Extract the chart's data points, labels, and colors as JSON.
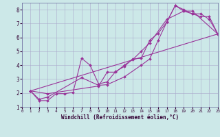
{
  "xlabel": "Windchill (Refroidissement éolien,°C)",
  "bg_color": "#cce8e8",
  "line_color": "#993399",
  "grid_color": "#aaaacc",
  "xlim": [
    0,
    23
  ],
  "ylim": [
    1,
    8.5
  ],
  "xticks": [
    0,
    1,
    2,
    3,
    4,
    5,
    6,
    7,
    8,
    9,
    10,
    11,
    12,
    13,
    14,
    15,
    16,
    17,
    18,
    19,
    20,
    21,
    22,
    23
  ],
  "yticks": [
    1,
    2,
    3,
    4,
    5,
    6,
    7,
    8
  ],
  "series": [
    {
      "x": [
        1,
        2,
        3,
        4,
        5,
        6,
        7,
        8,
        9,
        10,
        11,
        12,
        13,
        14,
        15,
        16,
        17,
        18,
        19,
        20,
        21,
        22,
        23
      ],
      "y": [
        2.15,
        1.45,
        1.45,
        1.95,
        1.95,
        2.05,
        4.5,
        4.0,
        2.65,
        2.8,
        3.55,
        3.9,
        4.45,
        4.5,
        5.8,
        6.3,
        7.1,
        8.3,
        7.9,
        7.7,
        7.7,
        7.3,
        6.25
      ]
    },
    {
      "x": [
        1,
        2,
        3,
        7,
        9,
        10,
        12,
        14,
        15,
        16,
        17,
        18,
        19,
        20,
        21,
        22,
        23
      ],
      "y": [
        2.15,
        1.55,
        1.7,
        3.1,
        2.55,
        2.6,
        3.15,
        4.0,
        4.45,
        5.8,
        7.1,
        8.3,
        8.0,
        7.7,
        7.5,
        7.5,
        6.25
      ]
    },
    {
      "x": [
        1,
        3,
        9,
        10,
        11,
        12,
        13,
        14,
        15,
        17,
        19,
        20,
        23
      ],
      "y": [
        2.15,
        1.95,
        2.5,
        3.5,
        3.5,
        4.0,
        4.4,
        5.0,
        5.6,
        7.3,
        7.9,
        7.9,
        6.25
      ]
    },
    {
      "x": [
        1,
        23
      ],
      "y": [
        2.15,
        6.25
      ]
    }
  ]
}
